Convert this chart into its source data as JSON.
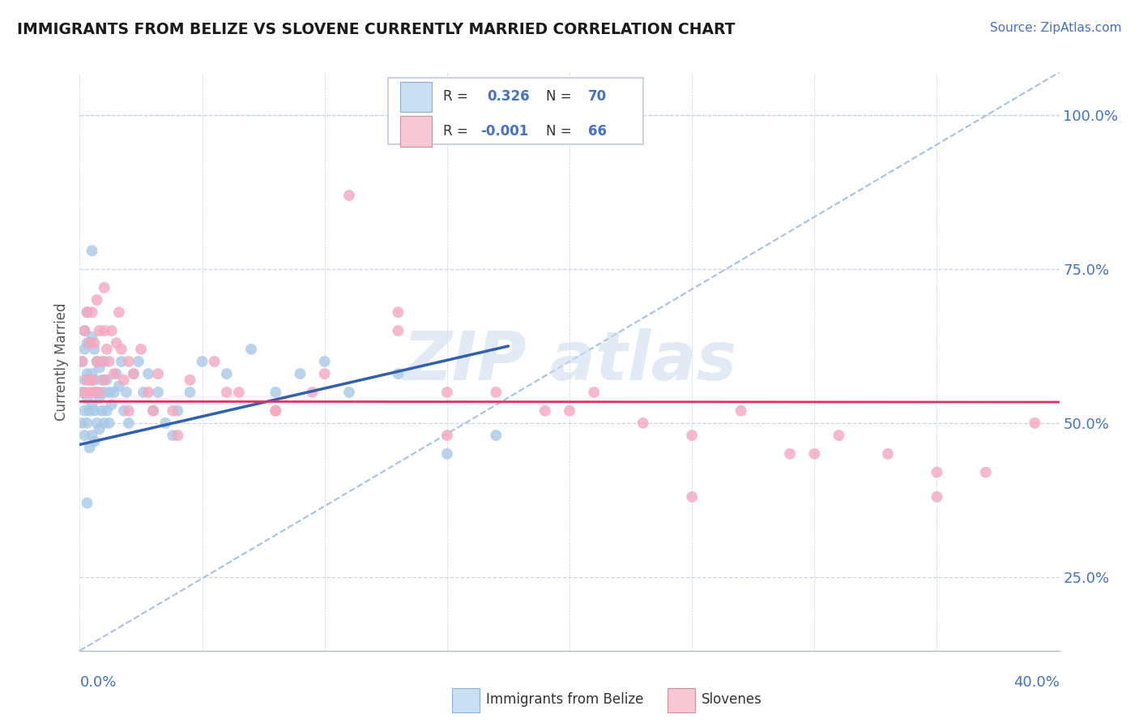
{
  "title": "IMMIGRANTS FROM BELIZE VS SLOVENE CURRENTLY MARRIED CORRELATION CHART",
  "source_text": "Source: ZipAtlas.com",
  "ylabel": "Currently Married",
  "ytick_labels": [
    "25.0%",
    "50.0%",
    "75.0%",
    "100.0%"
  ],
  "ytick_values": [
    0.25,
    0.5,
    0.75,
    1.0
  ],
  "xmin": 0.0,
  "xmax": 0.4,
  "ymin": 0.13,
  "ymax": 1.07,
  "R_belize": 0.326,
  "N_belize": 70,
  "R_slovene": -0.001,
  "N_slovene": 66,
  "color_belize": "#a8c8e8",
  "color_slovene": "#f4a8be",
  "color_belize_line": "#3060b0",
  "color_slovene_line": "#e03060",
  "color_diagonal": "#a8c0e0",
  "legend_box_color_belize": "#c8dff4",
  "legend_box_color_slovene": "#f8c8d4",
  "watermark_color": "#d0ddf0",
  "belize_x": [
    0.001,
    0.001,
    0.001,
    0.002,
    0.002,
    0.002,
    0.002,
    0.002,
    0.003,
    0.003,
    0.003,
    0.003,
    0.003,
    0.004,
    0.004,
    0.004,
    0.004,
    0.005,
    0.005,
    0.005,
    0.005,
    0.006,
    0.006,
    0.006,
    0.006,
    0.007,
    0.007,
    0.007,
    0.008,
    0.008,
    0.008,
    0.009,
    0.009,
    0.01,
    0.01,
    0.01,
    0.011,
    0.011,
    0.012,
    0.012,
    0.013,
    0.014,
    0.015,
    0.016,
    0.017,
    0.018,
    0.019,
    0.02,
    0.022,
    0.024,
    0.026,
    0.028,
    0.03,
    0.032,
    0.035,
    0.038,
    0.04,
    0.045,
    0.05,
    0.06,
    0.07,
    0.08,
    0.09,
    0.1,
    0.11,
    0.13,
    0.15,
    0.17,
    0.005,
    0.003
  ],
  "belize_y": [
    0.5,
    0.55,
    0.6,
    0.48,
    0.52,
    0.57,
    0.62,
    0.65,
    0.5,
    0.54,
    0.58,
    0.63,
    0.68,
    0.46,
    0.52,
    0.57,
    0.63,
    0.48,
    0.53,
    0.58,
    0.64,
    0.47,
    0.52,
    0.57,
    0.62,
    0.5,
    0.55,
    0.6,
    0.49,
    0.54,
    0.59,
    0.52,
    0.57,
    0.5,
    0.55,
    0.6,
    0.52,
    0.57,
    0.5,
    0.55,
    0.53,
    0.55,
    0.58,
    0.56,
    0.6,
    0.52,
    0.55,
    0.5,
    0.58,
    0.6,
    0.55,
    0.58,
    0.52,
    0.55,
    0.5,
    0.48,
    0.52,
    0.55,
    0.6,
    0.58,
    0.62,
    0.55,
    0.58,
    0.6,
    0.55,
    0.58,
    0.45,
    0.48,
    0.78,
    0.37
  ],
  "slovene_x": [
    0.001,
    0.002,
    0.002,
    0.003,
    0.003,
    0.004,
    0.004,
    0.005,
    0.005,
    0.006,
    0.006,
    0.007,
    0.007,
    0.008,
    0.008,
    0.009,
    0.01,
    0.01,
    0.011,
    0.012,
    0.013,
    0.014,
    0.015,
    0.016,
    0.017,
    0.018,
    0.02,
    0.022,
    0.025,
    0.028,
    0.032,
    0.038,
    0.045,
    0.055,
    0.065,
    0.08,
    0.095,
    0.11,
    0.13,
    0.15,
    0.17,
    0.19,
    0.21,
    0.23,
    0.25,
    0.27,
    0.29,
    0.31,
    0.33,
    0.35,
    0.37,
    0.39,
    0.13,
    0.15,
    0.06,
    0.08,
    0.1,
    0.3,
    0.2,
    0.25,
    0.35,
    0.02,
    0.03,
    0.04,
    0.005,
    0.01
  ],
  "slovene_y": [
    0.6,
    0.65,
    0.55,
    0.68,
    0.57,
    0.63,
    0.55,
    0.68,
    0.57,
    0.63,
    0.55,
    0.7,
    0.6,
    0.65,
    0.55,
    0.6,
    0.65,
    0.57,
    0.62,
    0.6,
    0.65,
    0.58,
    0.63,
    0.68,
    0.62,
    0.57,
    0.6,
    0.58,
    0.62,
    0.55,
    0.58,
    0.52,
    0.57,
    0.6,
    0.55,
    0.52,
    0.55,
    0.87,
    0.65,
    0.48,
    0.55,
    0.52,
    0.55,
    0.5,
    0.48,
    0.52,
    0.45,
    0.48,
    0.45,
    0.42,
    0.42,
    0.5,
    0.68,
    0.55,
    0.55,
    0.52,
    0.58,
    0.45,
    0.52,
    0.38,
    0.38,
    0.52,
    0.52,
    0.48,
    0.57,
    0.72
  ],
  "belize_line_x": [
    0.0,
    0.175
  ],
  "belize_line_y": [
    0.465,
    0.625
  ],
  "slovene_line_x": [
    0.0,
    0.4
  ],
  "slovene_line_y": [
    0.535,
    0.534
  ],
  "diag_line_x": [
    0.0,
    0.4
  ],
  "diag_line_y": [
    0.13,
    1.07
  ]
}
